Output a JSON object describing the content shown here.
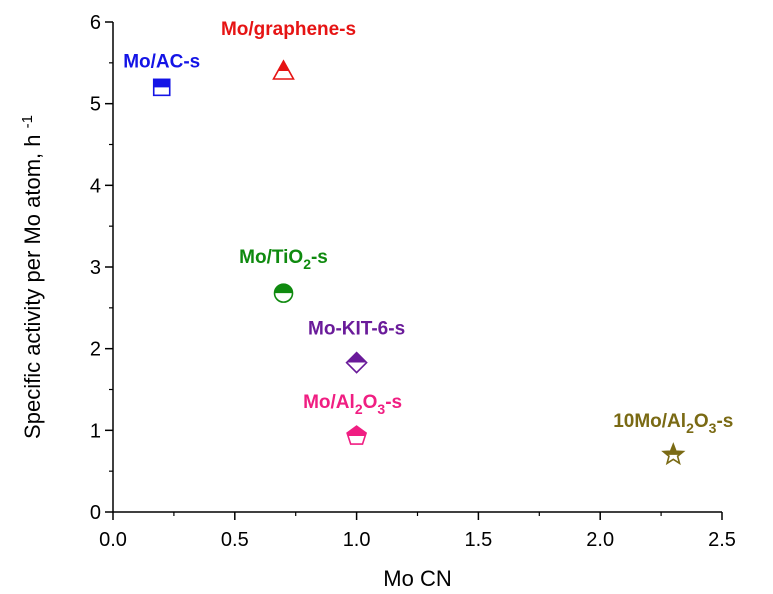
{
  "chart_data": {
    "type": "scatter",
    "title": "",
    "xlabel": "Mo CN",
    "ylabel": {
      "main": "Specific activity per Mo atom, h",
      "sup": "-1"
    },
    "xlim": [
      0,
      2.5
    ],
    "ylim": [
      0,
      6
    ],
    "x_ticks": [
      "0.0",
      "0.5",
      "1.0",
      "1.5",
      "2.0",
      "2.5"
    ],
    "y_ticks": [
      "0",
      "1",
      "2",
      "3",
      "4",
      "5",
      "6"
    ],
    "grid": false,
    "legend": "none",
    "points": [
      {
        "label": "Mo/AC-s",
        "label_parts": [
          [
            "Mo/AC-s",
            ""
          ]
        ],
        "x": 0.2,
        "y": 5.2,
        "color": "#1414e6",
        "marker": "square-half"
      },
      {
        "label": "Mo/graphene-s",
        "label_parts": [
          [
            "Mo/graphene-s",
            ""
          ]
        ],
        "x": 0.7,
        "y": 5.4,
        "color": "#e61414",
        "marker": "triangle-half"
      },
      {
        "label": "Mo/TiO2-s",
        "label_parts": [
          [
            "Mo/TiO",
            ""
          ],
          [
            "2",
            "sub"
          ],
          [
            "-s",
            ""
          ]
        ],
        "x": 0.7,
        "y": 2.68,
        "color": "#0f8a0f",
        "marker": "circle-half"
      },
      {
        "label": "Mo-KIT-6-s",
        "label_parts": [
          [
            "Mo-KIT-6-s",
            ""
          ]
        ],
        "x": 1.0,
        "y": 1.83,
        "color": "#6a1b9a",
        "marker": "diamond-half"
      },
      {
        "label": "Mo/Al2O3-s",
        "label_parts": [
          [
            "Mo/Al",
            ""
          ],
          [
            "2",
            "sub"
          ],
          [
            "O",
            ""
          ],
          [
            "3",
            "sub"
          ],
          [
            "-s",
            ""
          ]
        ],
        "x": 1.0,
        "y": 0.93,
        "color": "#f01e82",
        "marker": "pentagon-half"
      },
      {
        "label": "10Mo/Al2O3-s",
        "label_parts": [
          [
            "10Mo/Al",
            ""
          ],
          [
            "2",
            "sub"
          ],
          [
            "O",
            ""
          ],
          [
            "3",
            "sub"
          ],
          [
            "-s",
            ""
          ]
        ],
        "x": 2.3,
        "y": 0.7,
        "color": "#7a6a14",
        "marker": "star-half"
      }
    ]
  }
}
